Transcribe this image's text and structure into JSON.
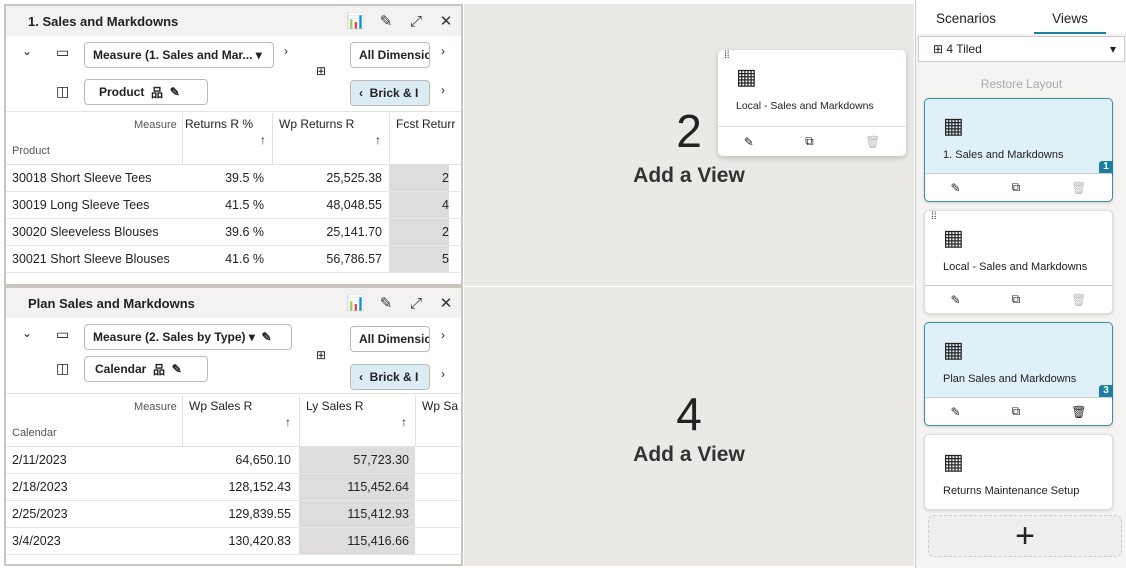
{
  "panel1": {
    "title": "1. Sales and Markdowns",
    "measure": "Measure (1. Sales and Mar...",
    "rowdim": "Product",
    "filter": "All Dimensio",
    "brick": "Brick & I",
    "measure_label": "Measure",
    "row_label": "Product",
    "columns": [
      "Returns R %",
      "Wp Returns R",
      "Fcst Returr"
    ],
    "rows": [
      [
        "30018 Short Sleeve Tees",
        "39.5 %",
        "25,525.38",
        "2"
      ],
      [
        "30019 Long Sleeve Tees",
        "41.5 %",
        "48,048.55",
        "4"
      ],
      [
        "30020 Sleeveless Blouses",
        "39.6 %",
        "25,141.70",
        "2"
      ],
      [
        "30021 Short Sleeve Blouses",
        "41.6 %",
        "56,786.57",
        "5"
      ]
    ]
  },
  "panel3": {
    "title": "Plan Sales and Markdowns",
    "measure": "Measure (2. Sales by Type)",
    "rowdim": "Calendar",
    "filter": "All Dimensio",
    "brick": "Brick & I",
    "measure_label": "Measure",
    "row_label": "Calendar",
    "columns": [
      "Wp Sales R",
      "Ly Sales R",
      "Wp Sa"
    ],
    "rows": [
      [
        "2/11/2023",
        "64,650.10",
        "57,723.30"
      ],
      [
        "2/18/2023",
        "128,152.43",
        "115,452.64"
      ],
      [
        "2/25/2023",
        "129,839.55",
        "115,412.93"
      ],
      [
        "3/4/2023",
        "130,420.83",
        "115,416.66"
      ]
    ]
  },
  "tile2": {
    "num": "2",
    "label": "Add a View"
  },
  "tile4": {
    "num": "4",
    "label": "Add a View"
  },
  "drag_card": {
    "name": "Local - Sales and Markdowns"
  },
  "sidebar": {
    "tabs": [
      "Scenarios",
      "Views"
    ],
    "active_tab": "Views",
    "layout": "4 Tiled",
    "restore": "Restore Layout",
    "views": [
      {
        "name": "1. Sales and Markdowns",
        "badge": "1",
        "selected": true
      },
      {
        "name": "Local - Sales and Markdowns",
        "badge": "",
        "selected": false
      },
      {
        "name": "Plan Sales and Markdowns",
        "badge": "3",
        "selected": true
      },
      {
        "name": "Returns Maintenance Setup",
        "badge": "",
        "selected": false
      }
    ],
    "add": "+"
  },
  "colors": {
    "accent": "#1b7fa3",
    "selected_bg": "#dff0f8",
    "tile_bg": "#ebe9e6"
  }
}
